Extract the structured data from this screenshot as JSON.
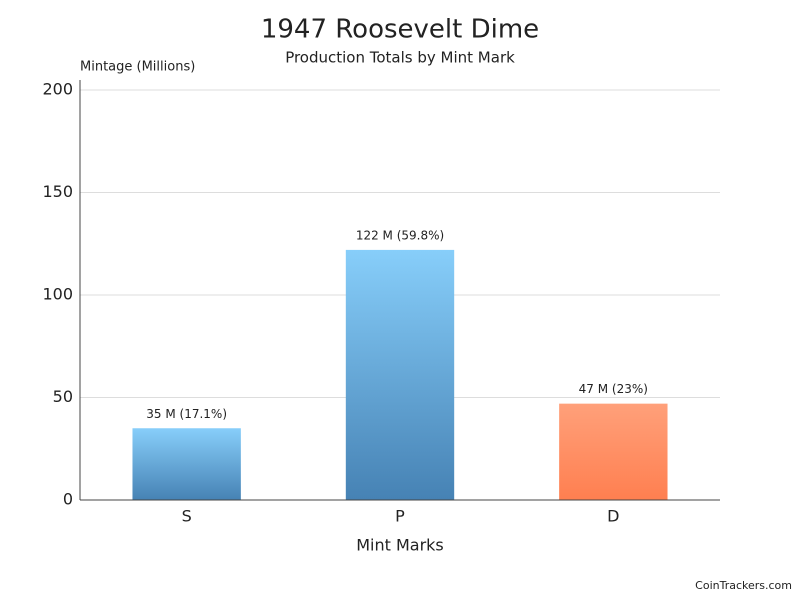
{
  "chart_data": {
    "type": "bar",
    "title": "1947 Roosevelt Dime",
    "subtitle": "Production Totals by Mint Mark",
    "y_label": "Mintage (Millions)",
    "x_label": "Mint Marks",
    "categories": [
      "S",
      "P",
      "D"
    ],
    "values": [
      35,
      122,
      47
    ],
    "value_labels": [
      "35 M (17.1%)",
      "122 M (59.8%)",
      "47 M (23%)"
    ],
    "colors": [
      {
        "top": "#87cefa",
        "bottom": "#4682b4"
      },
      {
        "top": "#87cefa",
        "bottom": "#4682b4"
      },
      {
        "top": "#ffa07a",
        "bottom": "#ff7f50"
      }
    ],
    "ylim": [
      0,
      200
    ],
    "yticks": [
      0,
      50,
      100,
      150,
      200
    ],
    "grid": true,
    "credit": "CoinTrackers.com"
  }
}
